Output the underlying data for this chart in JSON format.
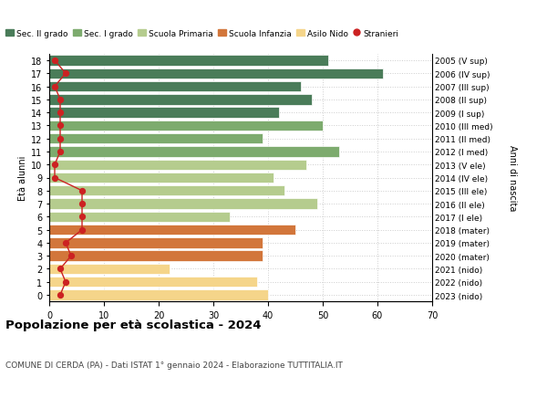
{
  "ages": [
    18,
    17,
    16,
    15,
    14,
    13,
    12,
    11,
    10,
    9,
    8,
    7,
    6,
    5,
    4,
    3,
    2,
    1,
    0
  ],
  "labels_right": [
    "2005 (V sup)",
    "2006 (IV sup)",
    "2007 (III sup)",
    "2008 (II sup)",
    "2009 (I sup)",
    "2010 (III med)",
    "2011 (II med)",
    "2012 (I med)",
    "2013 (V ele)",
    "2014 (IV ele)",
    "2015 (III ele)",
    "2016 (II ele)",
    "2017 (I ele)",
    "2018 (mater)",
    "2019 (mater)",
    "2020 (mater)",
    "2021 (nido)",
    "2022 (nido)",
    "2023 (nido)"
  ],
  "bar_values": [
    51,
    61,
    46,
    48,
    42,
    50,
    39,
    53,
    47,
    41,
    43,
    49,
    33,
    45,
    39,
    39,
    22,
    38,
    40
  ],
  "stranieri_values": [
    1,
    3,
    1,
    2,
    2,
    2,
    2,
    2,
    1,
    1,
    6,
    6,
    6,
    6,
    3,
    4,
    2,
    3,
    2
  ],
  "bar_colors": [
    "#4a7c59",
    "#4a7c59",
    "#4a7c59",
    "#4a7c59",
    "#4a7c59",
    "#7dab6e",
    "#7dab6e",
    "#7dab6e",
    "#b5cc8e",
    "#b5cc8e",
    "#b5cc8e",
    "#b5cc8e",
    "#b5cc8e",
    "#d2763b",
    "#d2763b",
    "#d2763b",
    "#f5d58a",
    "#f5d58a",
    "#f5d58a"
  ],
  "legend_labels": [
    "Sec. II grado",
    "Sec. I grado",
    "Scuola Primaria",
    "Scuola Infanzia",
    "Asilo Nido",
    "Stranieri"
  ],
  "legend_colors": [
    "#4a7c59",
    "#7dab6e",
    "#b5cc8e",
    "#d2763b",
    "#f5d58a",
    "#cc2222"
  ],
  "title": "Popolazione per età scolastica - 2024",
  "subtitle": "COMUNE DI CERDA (PA) - Dati ISTAT 1° gennaio 2024 - Elaborazione TUTTITALIA.IT",
  "ylabel_left": "Età alunni",
  "ylabel_right": "Anni di nascita",
  "xlim": [
    0,
    70
  ],
  "bar_height": 0.8,
  "background_color": "#ffffff",
  "grid_color": "#cccccc",
  "stranieri_line_color": "#cc2222",
  "stranieri_dot_color": "#cc2222"
}
